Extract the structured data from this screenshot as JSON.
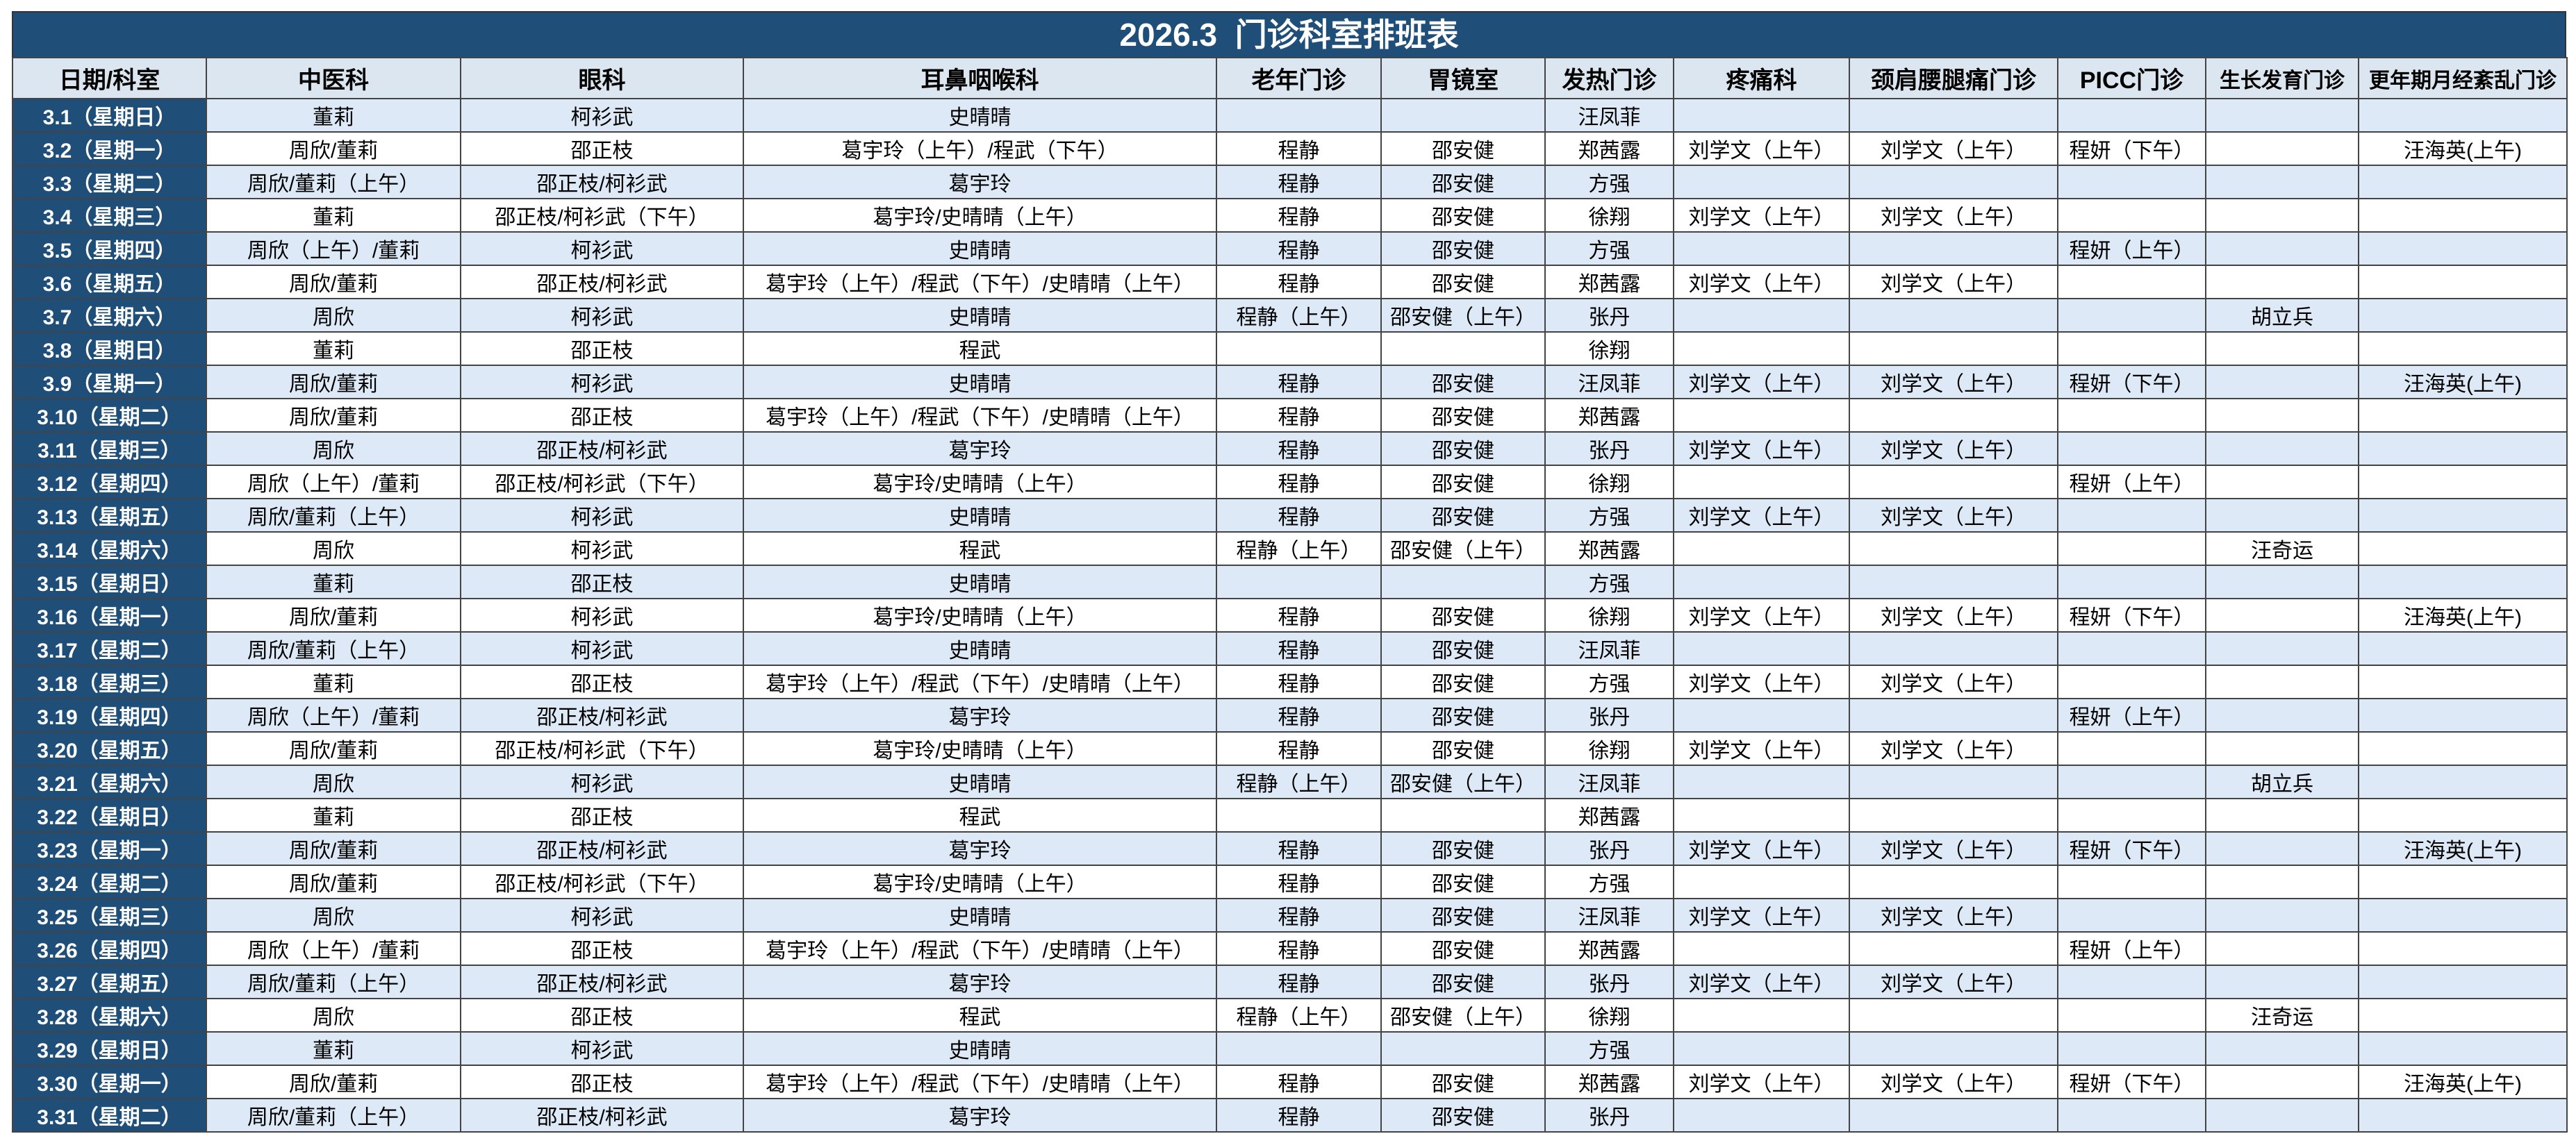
{
  "header": {
    "title": "2026.3  门诊科室排班表"
  },
  "table": {
    "columns": [
      "日期/科室",
      "中医科",
      "眼科",
      "耳鼻咽喉科",
      "老年门诊",
      "胃镜室",
      "发热门诊",
      "疼痛科",
      "颈肩腰腿痛门诊",
      "PICC门诊",
      "生长发育门诊",
      "更年期月经紊乱门诊"
    ],
    "rows": [
      [
        "3.1（星期日）",
        "董莉",
        "柯衫武",
        "史晴晴",
        null,
        null,
        "汪凤菲",
        null,
        null,
        null,
        null,
        null
      ],
      [
        "3.2（星期一）",
        "周欣/董莉",
        "邵正枝",
        "葛宇玲（上午）/程武（下午）",
        "程静",
        "邵安健",
        "郑茜露",
        "刘学文（上午）",
        "刘学文（上午）",
        "程妍（下午）",
        null,
        "汪海英(上午)"
      ],
      [
        "3.3（星期二）",
        "周欣/董莉（上午）",
        "邵正枝/柯衫武",
        "葛宇玲",
        "程静",
        "邵安健",
        "方强",
        null,
        null,
        null,
        null,
        null
      ],
      [
        "3.4（星期三）",
        "董莉",
        "邵正枝/柯衫武（下午）",
        "葛宇玲/史晴晴（上午）",
        "程静",
        "邵安健",
        "徐翔",
        "刘学文（上午）",
        "刘学文（上午）",
        null,
        null,
        null
      ],
      [
        "3.5（星期四）",
        "周欣（上午）/董莉",
        "柯衫武",
        "史晴晴",
        "程静",
        "邵安健",
        "方强",
        null,
        null,
        "程妍（上午）",
        null,
        null
      ],
      [
        "3.6（星期五）",
        "周欣/董莉",
        "邵正枝/柯衫武",
        "葛宇玲（上午）/程武（下午）/史晴晴（上午）",
        "程静",
        "邵安健",
        "郑茜露",
        "刘学文（上午）",
        "刘学文（上午）",
        null,
        null,
        null
      ],
      [
        "3.7（星期六）",
        "周欣",
        "柯衫武",
        "史晴晴",
        "程静（上午）",
        "邵安健（上午）",
        "张丹",
        null,
        null,
        null,
        "胡立兵",
        null
      ],
      [
        "3.8（星期日）",
        "董莉",
        "邵正枝",
        "程武",
        null,
        null,
        "徐翔",
        null,
        null,
        null,
        null,
        null
      ],
      [
        "3.9（星期一）",
        "周欣/董莉",
        "柯衫武",
        "史晴晴",
        "程静",
        "邵安健",
        "汪凤菲",
        "刘学文（上午）",
        "刘学文（上午）",
        "程妍（下午）",
        null,
        "汪海英(上午)"
      ],
      [
        "3.10（星期二）",
        "周欣/董莉",
        "邵正枝",
        "葛宇玲（上午）/程武（下午）/史晴晴（上午）",
        "程静",
        "邵安健",
        "郑茜露",
        null,
        null,
        null,
        null,
        null
      ],
      [
        "3.11（星期三）",
        "周欣",
        "邵正枝/柯衫武",
        "葛宇玲",
        "程静",
        "邵安健",
        "张丹",
        "刘学文（上午）",
        "刘学文（上午）",
        null,
        null,
        null
      ],
      [
        "3.12（星期四）",
        "周欣（上午）/董莉",
        "邵正枝/柯衫武（下午）",
        "葛宇玲/史晴晴（上午）",
        "程静",
        "邵安健",
        "徐翔",
        null,
        null,
        "程妍（上午）",
        null,
        null
      ],
      [
        "3.13（星期五）",
        "周欣/董莉（上午）",
        "柯衫武",
        "史晴晴",
        "程静",
        "邵安健",
        "方强",
        "刘学文（上午）",
        "刘学文（上午）",
        null,
        null,
        null
      ],
      [
        "3.14（星期六）",
        "周欣",
        "柯衫武",
        "程武",
        "程静（上午）",
        "邵安健（上午）",
        "郑茜露",
        null,
        null,
        null,
        "汪奇运",
        null
      ],
      [
        "3.15（星期日）",
        "董莉",
        "邵正枝",
        "史晴晴",
        null,
        null,
        "方强",
        null,
        null,
        null,
        null,
        null
      ],
      [
        "3.16（星期一）",
        "周欣/董莉",
        "柯衫武",
        "葛宇玲/史晴晴（上午）",
        "程静",
        "邵安健",
        "徐翔",
        "刘学文（上午）",
        "刘学文（上午）",
        "程妍（下午）",
        null,
        "汪海英(上午)"
      ],
      [
        "3.17（星期二）",
        "周欣/董莉（上午）",
        "柯衫武",
        "史晴晴",
        "程静",
        "邵安健",
        "汪凤菲",
        null,
        null,
        null,
        null,
        null
      ],
      [
        "3.18（星期三）",
        "董莉",
        "邵正枝",
        "葛宇玲（上午）/程武（下午）/史晴晴（上午）",
        "程静",
        "邵安健",
        "方强",
        "刘学文（上午）",
        "刘学文（上午）",
        null,
        null,
        null
      ],
      [
        "3.19（星期四）",
        "周欣（上午）/董莉",
        "邵正枝/柯衫武",
        "葛宇玲",
        "程静",
        "邵安健",
        "张丹",
        null,
        null,
        "程妍（上午）",
        null,
        null
      ],
      [
        "3.20（星期五）",
        "周欣/董莉",
        "邵正枝/柯衫武（下午）",
        "葛宇玲/史晴晴（上午）",
        "程静",
        "邵安健",
        "徐翔",
        "刘学文（上午）",
        "刘学文（上午）",
        null,
        null,
        null
      ],
      [
        "3.21（星期六）",
        "周欣",
        "柯衫武",
        "史晴晴",
        "程静（上午）",
        "邵安健（上午）",
        "汪凤菲",
        null,
        null,
        null,
        "胡立兵",
        null
      ],
      [
        "3.22（星期日）",
        "董莉",
        "邵正枝",
        "程武",
        null,
        null,
        "郑茜露",
        null,
        null,
        null,
        null,
        null
      ],
      [
        "3.23（星期一）",
        "周欣/董莉",
        "邵正枝/柯衫武",
        "葛宇玲",
        "程静",
        "邵安健",
        "张丹",
        "刘学文（上午）",
        "刘学文（上午）",
        "程妍（下午）",
        null,
        "汪海英(上午)"
      ],
      [
        "3.24（星期二）",
        "周欣/董莉",
        "邵正枝/柯衫武（下午）",
        "葛宇玲/史晴晴（上午）",
        "程静",
        "邵安健",
        "方强",
        null,
        null,
        null,
        null,
        null
      ],
      [
        "3.25（星期三）",
        "周欣",
        "柯衫武",
        "史晴晴",
        "程静",
        "邵安健",
        "汪凤菲",
        "刘学文（上午）",
        "刘学文（上午）",
        null,
        null,
        null
      ],
      [
        "3.26（星期四）",
        "周欣（上午）/董莉",
        "邵正枝",
        "葛宇玲（上午）/程武（下午）/史晴晴（上午）",
        "程静",
        "邵安健",
        "郑茜露",
        null,
        null,
        "程妍（上午）",
        null,
        null
      ],
      [
        "3.27（星期五）",
        "周欣/董莉（上午）",
        "邵正枝/柯衫武",
        "葛宇玲",
        "程静",
        "邵安健",
        "张丹",
        "刘学文（上午）",
        "刘学文（上午）",
        null,
        null,
        null
      ],
      [
        "3.28（星期六）",
        "周欣",
        "邵正枝",
        "程武",
        "程静（上午）",
        "邵安健（上午）",
        "徐翔",
        null,
        null,
        null,
        "汪奇运",
        null
      ],
      [
        "3.29（星期日）",
        "董莉",
        "柯衫武",
        "史晴晴",
        null,
        null,
        "方强",
        null,
        null,
        null,
        null,
        null
      ],
      [
        "3.30（星期一）",
        "周欣/董莉",
        "邵正枝",
        "葛宇玲（上午）/程武（下午）/史晴晴（上午）",
        "程静",
        "邵安健",
        "郑茜露",
        "刘学文（上午）",
        "刘学文（上午）",
        "程妍（下午）",
        null,
        "汪海英(上午)"
      ],
      [
        "3.31（星期二）",
        "周欣/董莉（上午）",
        "邵正枝/柯衫武",
        "葛宇玲",
        "程静",
        "邵安健",
        "张丹",
        null,
        null,
        null,
        null,
        null
      ]
    ]
  }
}
